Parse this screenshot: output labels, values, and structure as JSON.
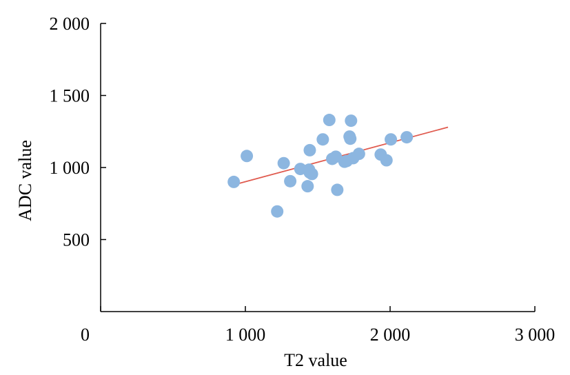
{
  "chart_data": {
    "type": "scatter",
    "title": "",
    "xlabel": "T2 value",
    "ylabel": "ADC value",
    "xlim": [
      0,
      3000
    ],
    "ylim": [
      0,
      2000
    ],
    "x_ticks": [
      {
        "value": 0,
        "label": "0"
      },
      {
        "value": 1000,
        "label": "1 000"
      },
      {
        "value": 2000,
        "label": "2 000"
      },
      {
        "value": 3000,
        "label": "3 000"
      }
    ],
    "y_ticks": [
      {
        "value": 500,
        "label": "500"
      },
      {
        "value": 1000,
        "label": "1 000"
      },
      {
        "value": 1500,
        "label": "1 500"
      },
      {
        "value": 2000,
        "label": "2 000"
      }
    ],
    "grid": false,
    "point_color": "#8cb6e0",
    "trend_color": "#e05a4e",
    "points": [
      {
        "x": 920,
        "y": 900
      },
      {
        "x": 1010,
        "y": 1080
      },
      {
        "x": 1220,
        "y": 695
      },
      {
        "x": 1265,
        "y": 1030
      },
      {
        "x": 1310,
        "y": 905
      },
      {
        "x": 1380,
        "y": 990
      },
      {
        "x": 1430,
        "y": 870
      },
      {
        "x": 1440,
        "y": 985
      },
      {
        "x": 1445,
        "y": 1120
      },
      {
        "x": 1445,
        "y": 965
      },
      {
        "x": 1460,
        "y": 955
      },
      {
        "x": 1535,
        "y": 1195
      },
      {
        "x": 1580,
        "y": 1330
      },
      {
        "x": 1600,
        "y": 1060
      },
      {
        "x": 1625,
        "y": 1075
      },
      {
        "x": 1635,
        "y": 845
      },
      {
        "x": 1685,
        "y": 1040
      },
      {
        "x": 1700,
        "y": 1045
      },
      {
        "x": 1720,
        "y": 1215
      },
      {
        "x": 1725,
        "y": 1200
      },
      {
        "x": 1730,
        "y": 1325
      },
      {
        "x": 1745,
        "y": 1065
      },
      {
        "x": 1785,
        "y": 1095
      },
      {
        "x": 1935,
        "y": 1090
      },
      {
        "x": 1975,
        "y": 1050
      },
      {
        "x": 2005,
        "y": 1195
      },
      {
        "x": 2115,
        "y": 1210
      }
    ],
    "trendline": {
      "x": [
        920,
        2400
      ],
      "y": [
        880,
        1280
      ]
    }
  }
}
